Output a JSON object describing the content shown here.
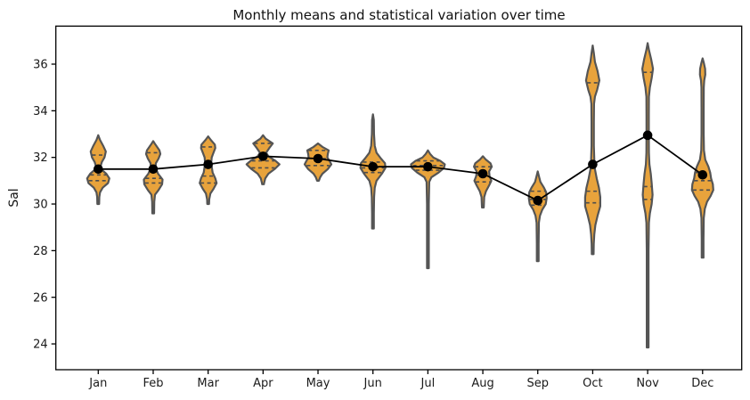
{
  "chart_data": {
    "type": "violin",
    "title": "Monthly means and statistical variation over time",
    "xlabel": "",
    "ylabel": "Sal",
    "categories": [
      "Jan",
      "Feb",
      "Mar",
      "Apr",
      "May",
      "Jun",
      "Jul",
      "Aug",
      "Sep",
      "Oct",
      "Nov",
      "Dec"
    ],
    "yticks": [
      24,
      26,
      28,
      30,
      32,
      34,
      36
    ],
    "ylim": [
      22.9,
      37.6
    ],
    "grid": false,
    "legend": "none",
    "mean_series": {
      "name": "monthly mean",
      "values": [
        31.5,
        31.5,
        31.7,
        32.05,
        31.95,
        31.6,
        31.6,
        31.3,
        30.15,
        31.7,
        32.95,
        31.25
      ]
    },
    "violins": [
      {
        "month": "Jan",
        "mean": 31.5,
        "min": 30.0,
        "max": 32.95,
        "quartiles": [
          31.0,
          31.25,
          32.1
        ],
        "profile": [
          [
            32.95,
            0
          ],
          [
            32.75,
            2
          ],
          [
            32.5,
            5.5
          ],
          [
            32.25,
            8.5
          ],
          [
            32.0,
            7
          ],
          [
            31.8,
            4
          ],
          [
            31.6,
            2.5
          ],
          [
            31.45,
            4.5
          ],
          [
            31.3,
            9
          ],
          [
            31.1,
            12.5
          ],
          [
            30.9,
            11
          ],
          [
            30.7,
            5
          ],
          [
            30.5,
            2
          ],
          [
            30.3,
            1.2
          ],
          [
            30.0,
            1
          ],
          [
            30.0,
            0
          ]
        ]
      },
      {
        "month": "Feb",
        "mean": 31.5,
        "min": 29.6,
        "max": 32.7,
        "quartiles": [
          30.9,
          31.1,
          32.2
        ],
        "profile": [
          [
            32.7,
            0
          ],
          [
            32.55,
            2.5
          ],
          [
            32.3,
            7
          ],
          [
            32.15,
            8
          ],
          [
            31.95,
            6
          ],
          [
            31.75,
            3
          ],
          [
            31.55,
            2.5
          ],
          [
            31.3,
            5.5
          ],
          [
            31.05,
            10.5
          ],
          [
            30.85,
            10
          ],
          [
            30.6,
            6
          ],
          [
            30.4,
            2
          ],
          [
            30.1,
            1.2
          ],
          [
            29.6,
            1
          ],
          [
            29.6,
            0
          ]
        ]
      },
      {
        "month": "Mar",
        "mean": 31.7,
        "min": 30.0,
        "max": 32.9,
        "quartiles": [
          30.9,
          31.2,
          32.45
        ],
        "profile": [
          [
            32.9,
            0
          ],
          [
            32.75,
            3
          ],
          [
            32.55,
            7.5
          ],
          [
            32.4,
            8
          ],
          [
            32.2,
            6
          ],
          [
            32.0,
            4
          ],
          [
            31.8,
            3.5
          ],
          [
            31.6,
            4
          ],
          [
            31.35,
            5
          ],
          [
            31.1,
            8
          ],
          [
            30.9,
            9.5
          ],
          [
            30.65,
            6
          ],
          [
            30.45,
            2.5
          ],
          [
            30.2,
            1.2
          ],
          [
            30.0,
            1
          ],
          [
            30.0,
            0
          ]
        ]
      },
      {
        "month": "Apr",
        "mean": 32.05,
        "min": 30.85,
        "max": 32.95,
        "quartiles": [
          31.55,
          31.85,
          32.6
        ],
        "profile": [
          [
            32.95,
            0
          ],
          [
            32.8,
            3
          ],
          [
            32.6,
            11
          ],
          [
            32.4,
            7
          ],
          [
            32.2,
            3.5
          ],
          [
            32.05,
            6
          ],
          [
            31.85,
            14
          ],
          [
            31.7,
            18.5
          ],
          [
            31.5,
            13
          ],
          [
            31.3,
            6
          ],
          [
            31.1,
            2.5
          ],
          [
            30.9,
            1.2
          ],
          [
            30.85,
            1
          ],
          [
            30.85,
            0
          ]
        ]
      },
      {
        "month": "May",
        "mean": 31.95,
        "min": 31.0,
        "max": 32.6,
        "quartiles": [
          31.65,
          31.95,
          32.3
        ],
        "profile": [
          [
            32.6,
            0
          ],
          [
            32.45,
            5
          ],
          [
            32.3,
            12
          ],
          [
            32.15,
            11
          ],
          [
            32.0,
            10.5
          ],
          [
            31.85,
            13
          ],
          [
            31.7,
            15
          ],
          [
            31.5,
            11
          ],
          [
            31.3,
            5
          ],
          [
            31.15,
            2.5
          ],
          [
            31.0,
            1
          ],
          [
            31.0,
            0
          ]
        ]
      },
      {
        "month": "Jun",
        "mean": 31.6,
        "min": 28.95,
        "max": 33.85,
        "quartiles": [
          31.35,
          31.55,
          31.8
        ],
        "profile": [
          [
            33.85,
            0
          ],
          [
            33.6,
            1
          ],
          [
            33.0,
            1.2
          ],
          [
            32.5,
            2
          ],
          [
            32.2,
            4
          ],
          [
            31.95,
            9
          ],
          [
            31.75,
            13.5
          ],
          [
            31.55,
            14
          ],
          [
            31.3,
            10
          ],
          [
            31.0,
            4
          ],
          [
            30.7,
            2
          ],
          [
            30.3,
            1.3
          ],
          [
            29.6,
            1
          ],
          [
            28.95,
            1
          ],
          [
            28.95,
            0
          ]
        ]
      },
      {
        "month": "Jul",
        "mean": 31.6,
        "min": 27.25,
        "max": 32.3,
        "quartiles": [
          31.45,
          31.65,
          31.85
        ],
        "profile": [
          [
            32.3,
            0
          ],
          [
            32.15,
            2.5
          ],
          [
            32.0,
            6
          ],
          [
            31.85,
            14
          ],
          [
            31.7,
            19
          ],
          [
            31.55,
            18
          ],
          [
            31.35,
            12
          ],
          [
            31.15,
            4
          ],
          [
            30.95,
            1.5
          ],
          [
            30.0,
            1
          ],
          [
            27.25,
            1
          ],
          [
            27.25,
            0
          ]
        ]
      },
      {
        "month": "Aug",
        "mean": 31.3,
        "min": 29.85,
        "max": 32.05,
        "quartiles": [
          30.95,
          31.25,
          31.6
        ],
        "profile": [
          [
            32.05,
            0
          ],
          [
            31.9,
            3.5
          ],
          [
            31.75,
            8.5
          ],
          [
            31.6,
            10
          ],
          [
            31.4,
            7
          ],
          [
            31.2,
            7.5
          ],
          [
            31.0,
            9.5
          ],
          [
            30.8,
            7
          ],
          [
            30.55,
            3.5
          ],
          [
            30.3,
            1.5
          ],
          [
            29.85,
            1
          ],
          [
            29.85,
            0
          ]
        ]
      },
      {
        "month": "Sep",
        "mean": 30.15,
        "min": 27.55,
        "max": 31.4,
        "quartiles": [
          29.95,
          30.2,
          30.55
        ],
        "profile": [
          [
            31.4,
            0
          ],
          [
            31.2,
            1.3
          ],
          [
            30.95,
            3
          ],
          [
            30.7,
            7
          ],
          [
            30.5,
            9.5
          ],
          [
            30.25,
            10
          ],
          [
            30.0,
            9
          ],
          [
            29.75,
            5
          ],
          [
            29.5,
            2.5
          ],
          [
            29.2,
            1.3
          ],
          [
            28.3,
            1
          ],
          [
            27.55,
            1
          ],
          [
            27.55,
            0
          ]
        ]
      },
      {
        "month": "Oct",
        "mean": 31.7,
        "min": 27.85,
        "max": 36.8,
        "quartiles": [
          30.05,
          30.55,
          35.2
        ],
        "profile": [
          [
            36.8,
            0
          ],
          [
            36.5,
            1.2
          ],
          [
            36.1,
            2.5
          ],
          [
            35.7,
            5.5
          ],
          [
            35.3,
            7.5
          ],
          [
            34.9,
            5
          ],
          [
            34.6,
            2.5
          ],
          [
            34.3,
            1.5
          ],
          [
            33.5,
            1.3
          ],
          [
            32.5,
            1.3
          ],
          [
            31.9,
            1.8
          ],
          [
            31.5,
            2.5
          ],
          [
            31.1,
            4.5
          ],
          [
            30.7,
            7
          ],
          [
            30.3,
            8.5
          ],
          [
            29.9,
            8.5
          ],
          [
            29.5,
            5.5
          ],
          [
            29.1,
            3
          ],
          [
            28.7,
            1.8
          ],
          [
            28.3,
            1.2
          ],
          [
            27.85,
            1
          ],
          [
            27.85,
            0
          ]
        ]
      },
      {
        "month": "Nov",
        "mean": 32.95,
        "min": 23.85,
        "max": 36.9,
        "quartiles": [
          30.2,
          30.75,
          35.65
        ],
        "profile": [
          [
            36.9,
            0
          ],
          [
            36.6,
            1.5
          ],
          [
            36.2,
            4
          ],
          [
            35.8,
            6
          ],
          [
            35.4,
            4.5
          ],
          [
            35.0,
            2.5
          ],
          [
            34.6,
            1.4
          ],
          [
            33.8,
            1.3
          ],
          [
            33.0,
            1.3
          ],
          [
            32.2,
            1.4
          ],
          [
            31.7,
            2
          ],
          [
            31.3,
            3.5
          ],
          [
            30.9,
            4.5
          ],
          [
            30.4,
            5.5
          ],
          [
            30.0,
            4.5
          ],
          [
            29.6,
            2.5
          ],
          [
            29.2,
            1.4
          ],
          [
            28.0,
            1
          ],
          [
            26.0,
            1
          ],
          [
            23.85,
            1
          ],
          [
            23.85,
            0
          ]
        ]
      },
      {
        "month": "Dec",
        "mean": 31.25,
        "min": 27.7,
        "max": 36.25,
        "quartiles": [
          30.6,
          31.0,
          31.35
        ],
        "profile": [
          [
            36.25,
            0
          ],
          [
            36.05,
            1.4
          ],
          [
            35.8,
            2.8
          ],
          [
            35.55,
            3
          ],
          [
            35.3,
            1.8
          ],
          [
            35.0,
            1.3
          ],
          [
            34.0,
            1.2
          ],
          [
            33.0,
            1.2
          ],
          [
            32.3,
            1.5
          ],
          [
            31.9,
            3
          ],
          [
            31.6,
            6.5
          ],
          [
            31.35,
            8.5
          ],
          [
            31.1,
            9.5
          ],
          [
            30.85,
            11.5
          ],
          [
            30.6,
            12
          ],
          [
            30.35,
            9
          ],
          [
            30.1,
            5
          ],
          [
            29.8,
            2.5
          ],
          [
            29.4,
            1.3
          ],
          [
            28.5,
            1
          ],
          [
            27.7,
            1
          ],
          [
            27.7,
            0
          ]
        ]
      }
    ],
    "colors": {
      "violin_fill": "#e8a33c",
      "violin_edge": "#555555",
      "quartile_line": "#4d4d4d",
      "mean_line": "#000000",
      "frame": "#000000",
      "tick_text": "#1a1a1a"
    }
  }
}
